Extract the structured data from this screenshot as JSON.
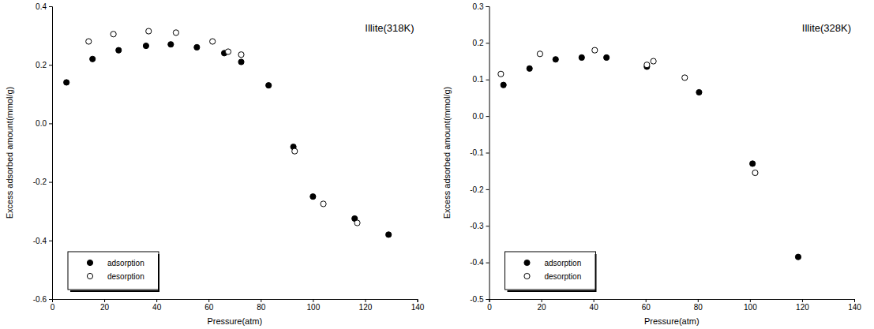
{
  "chart_data": [
    {
      "type": "scatter",
      "annotation": "Illite(318K)",
      "x_label": "Pressure(atm)",
      "y_label": "Excess adsorbed amount(mmol/g)",
      "xlim": [
        0,
        140
      ],
      "xticks": [
        0,
        20,
        40,
        60,
        80,
        100,
        120,
        140
      ],
      "ylim": [
        -0.6,
        0.4
      ],
      "yticks": [
        -0.6,
        -0.4,
        -0.2,
        {
          "value": 0,
          "label": "0.0"
        },
        0.2,
        0.4
      ],
      "legend": "lower left",
      "series": [
        {
          "name": "adsorption",
          "color": "#000000",
          "marker": "filled",
          "x": [
            5.5,
            15.5,
            25.5,
            36,
            45.5,
            55.5,
            66,
            72.5,
            83,
            92.5,
            100,
            116,
            129
          ],
          "values": [
            0.14,
            0.22,
            0.25,
            0.265,
            0.27,
            0.26,
            0.24,
            0.21,
            0.13,
            -0.08,
            -0.25,
            -0.325,
            -0.38
          ]
        },
        {
          "name": "desorption",
          "color": "#000000",
          "marker": "open",
          "x": [
            14,
            23.5,
            37,
            47.5,
            61.5,
            67.5,
            72.5,
            93,
            104,
            117
          ],
          "values": [
            0.28,
            0.305,
            0.315,
            0.31,
            0.28,
            0.245,
            0.235,
            -0.095,
            -0.275,
            -0.34
          ]
        }
      ]
    },
    {
      "type": "scatter",
      "annotation": "Illite(328K)",
      "x_label": "Pressure(atm)",
      "y_label": "Excess adsorbed amount(mmol/g)",
      "xlim": [
        0,
        140
      ],
      "xticks": [
        0,
        20,
        40,
        60,
        80,
        100,
        120,
        140
      ],
      "ylim": [
        -0.5,
        0.3
      ],
      "yticks": [
        -0.5,
        -0.4,
        -0.3,
        -0.2,
        -0.1,
        {
          "value": 0,
          "label": "0.0"
        },
        0.1,
        0.2,
        0.3
      ],
      "legend": "lower left",
      "series": [
        {
          "name": "adsorption",
          "color": "#000000",
          "marker": "filled",
          "x": [
            5.5,
            15.5,
            25.5,
            35.5,
            45,
            60.5,
            80.5,
            101,
            118.5
          ],
          "values": [
            0.085,
            0.13,
            0.155,
            0.16,
            0.16,
            0.135,
            0.065,
            -0.13,
            -0.385
          ]
        },
        {
          "name": "desorption",
          "color": "#000000",
          "marker": "open",
          "x": [
            4.5,
            19.5,
            40.5,
            60.5,
            63,
            75,
            102
          ],
          "values": [
            0.115,
            0.17,
            0.18,
            0.14,
            0.15,
            0.105,
            -0.155
          ]
        }
      ]
    }
  ]
}
